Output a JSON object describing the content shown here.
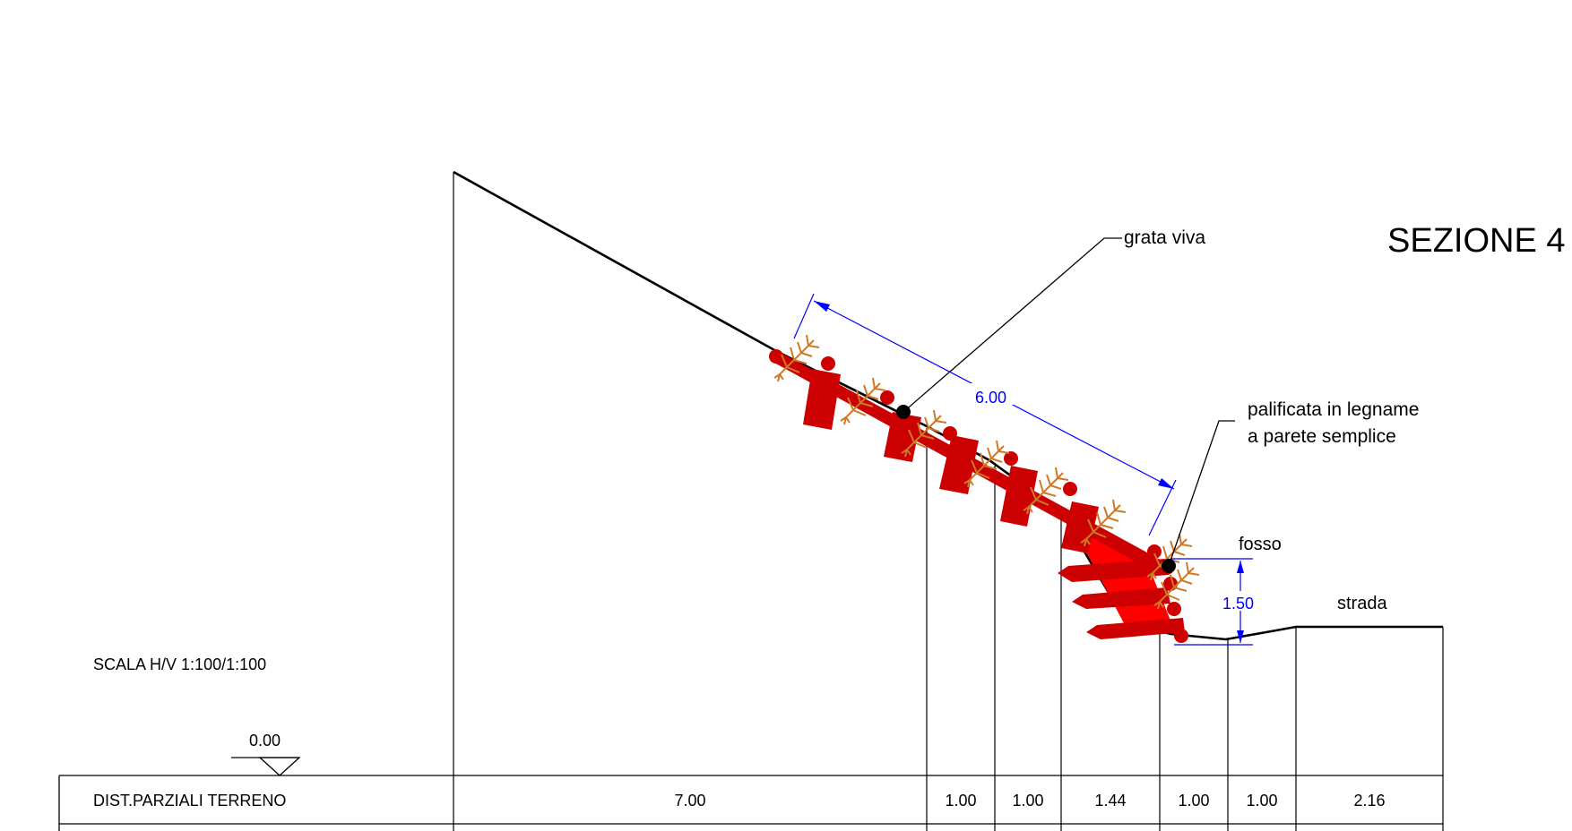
{
  "title": "SEZIONE 4",
  "scale_note": "SCALA H/V 1:100/1:100",
  "datum_label": "0.00",
  "callouts": {
    "grata": "grata viva",
    "palificata_line1": "palificata in legname",
    "palificata_line2": "a parete semplice",
    "fosso": "fosso",
    "strada": "strada"
  },
  "dimensions": {
    "slope_length": "6.00",
    "ditch_height": "1.50"
  },
  "table": {
    "row_label": "DIST.PARZIALI TERRENO",
    "values": [
      "7.00",
      "1.00",
      "1.00",
      "1.44",
      "1.00",
      "1.00",
      "2.16"
    ]
  },
  "colors": {
    "structure": "#cc0000",
    "fill": "#ff0000",
    "vegetation": "#cc7a29",
    "dimension": "#0000ff"
  }
}
